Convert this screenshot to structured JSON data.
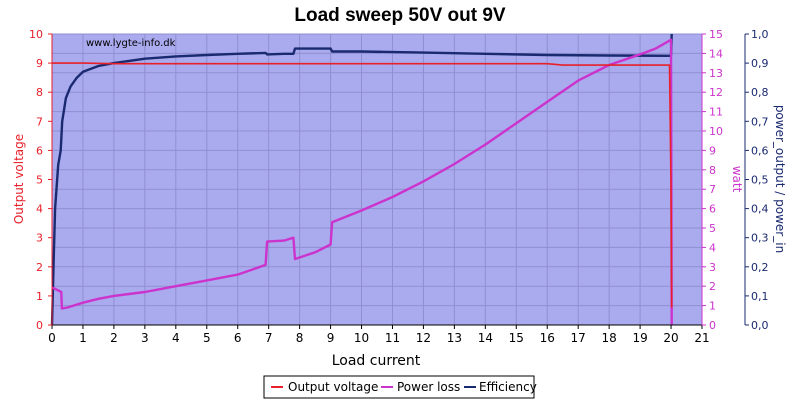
{
  "chart_data": {
    "type": "line",
    "title": "Load sweep 50V out 9V",
    "watermark": "www.lygte-info.dk",
    "xlabel": "Load current",
    "ylabel_left": "Output voltage",
    "ylabel_right1": "watt",
    "ylabel_right2": "power_output / power_in",
    "xlim": [
      0,
      21
    ],
    "ylim_left": [
      0,
      10
    ],
    "ylim_right1": [
      0,
      15
    ],
    "ylim_right2": [
      0,
      1
    ],
    "x_ticks": [
      "0",
      "1",
      "2",
      "3",
      "4",
      "5",
      "6",
      "7",
      "8",
      "9",
      "10",
      "11",
      "12",
      "13",
      "14",
      "15",
      "16",
      "17",
      "18",
      "19",
      "20",
      "21"
    ],
    "y_left_ticks": [
      "0",
      "1",
      "2",
      "3",
      "4",
      "5",
      "6",
      "7",
      "8",
      "9",
      "10"
    ],
    "y_right1_ticks": [
      "0",
      "1",
      "2",
      "3",
      "4",
      "5",
      "6",
      "7",
      "8",
      "9",
      "10",
      "11",
      "12",
      "13",
      "14",
      "15"
    ],
    "y_right2_ticks": [
      "0,0",
      "0,1",
      "0,2",
      "0,3",
      "0,4",
      "0,5",
      "0,6",
      "0,7",
      "0,8",
      "0,9",
      "1,0"
    ],
    "grid": true,
    "legend_position": "bottom",
    "colors": {
      "plot_bg": "#aaaaee",
      "grid": "#8f8fd0",
      "output_voltage": "#e8202a",
      "power_loss": "#cc33cc",
      "efficiency": "#1a2a70",
      "left_axis": "#e8202a",
      "right1_axis": "#cc33cc",
      "right2_axis": "#1a2a70"
    },
    "series": [
      {
        "name": "Output voltage",
        "axis": "left",
        "x": [
          0,
          0.1,
          0.3,
          0.6,
          1,
          2,
          3,
          5,
          8,
          10,
          12,
          14,
          16,
          16.5,
          17,
          18,
          19,
          19.95,
          20.0,
          20.02
        ],
        "y": [
          9.0,
          9.0,
          9.0,
          9.0,
          9.0,
          8.98,
          8.98,
          8.98,
          8.98,
          8.98,
          8.98,
          8.98,
          8.98,
          8.93,
          8.93,
          8.93,
          8.93,
          8.93,
          4.8,
          0.6
        ]
      },
      {
        "name": "Power loss",
        "axis": "right1",
        "x": [
          0.0,
          0.05,
          0.3,
          0.32,
          0.5,
          1,
          1.5,
          2,
          3,
          4,
          5,
          6,
          6.9,
          6.95,
          7.5,
          7.8,
          7.85,
          8.5,
          9.0,
          9.05,
          10,
          11,
          12,
          13,
          14,
          15,
          16,
          17,
          18,
          19,
          19.5,
          20.0,
          20.02
        ],
        "y": [
          1.9,
          1.9,
          1.7,
          0.85,
          0.9,
          1.15,
          1.35,
          1.5,
          1.7,
          2.0,
          2.3,
          2.6,
          3.1,
          4.3,
          4.35,
          4.5,
          3.4,
          3.75,
          4.15,
          5.3,
          5.9,
          6.6,
          7.4,
          8.3,
          9.3,
          10.4,
          11.5,
          12.6,
          13.4,
          13.95,
          14.25,
          14.7,
          0.0
        ]
      },
      {
        "name": "Efficiency",
        "axis": "right2",
        "x": [
          0.0,
          0.05,
          0.1,
          0.2,
          0.28,
          0.33,
          0.45,
          0.6,
          0.8,
          1,
          1.5,
          2,
          3,
          4,
          5,
          6,
          6.9,
          6.95,
          7.5,
          7.8,
          7.85,
          8.5,
          9.0,
          9.05,
          10,
          12,
          14,
          16,
          18,
          20.0,
          20.02
        ],
        "y": [
          0.0,
          0.2,
          0.4,
          0.55,
          0.6,
          0.7,
          0.78,
          0.82,
          0.85,
          0.87,
          0.89,
          0.9,
          0.915,
          0.923,
          0.928,
          0.932,
          0.935,
          0.93,
          0.932,
          0.932,
          0.95,
          0.95,
          0.95,
          0.94,
          0.94,
          0.936,
          0.932,
          0.928,
          0.926,
          0.925,
          1.0
        ]
      }
    ]
  }
}
